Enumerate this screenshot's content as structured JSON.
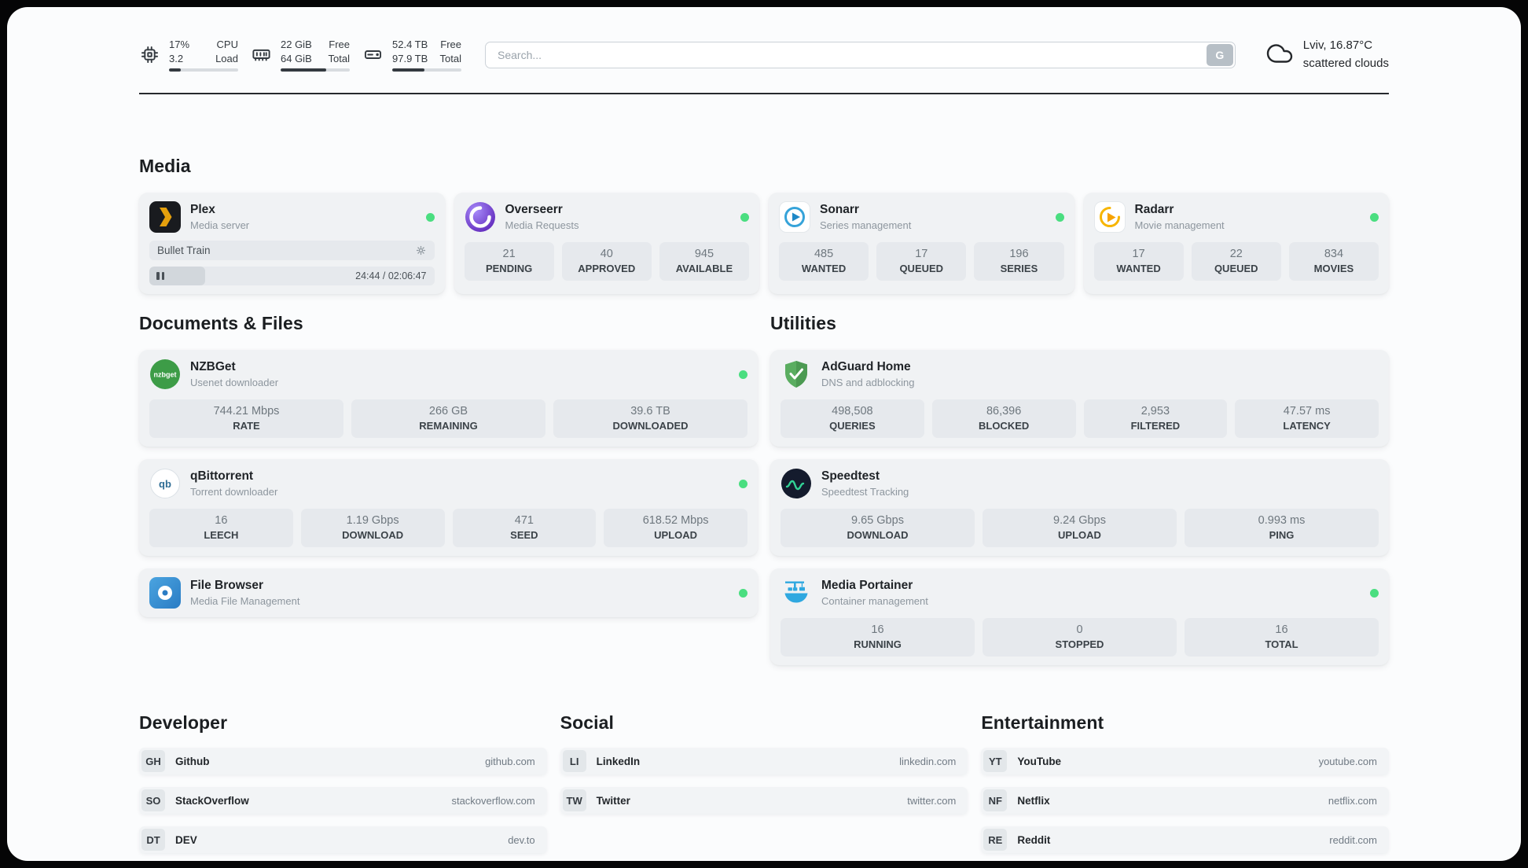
{
  "colors": {
    "status_online": "#4ade80",
    "card_background": "#f0f2f4",
    "stat_background": "#e6e9ed",
    "accent_dark": "#343a40",
    "plex_orange": "#e5a00d",
    "overseerr_purple": "#5b21b6",
    "sonarr_blue": "#36a3d9",
    "radarr_yellow": "#f7b500",
    "nzbget_green": "#3d9c47",
    "adguard_green": "#5aad60",
    "speedtest_green": "#32d296",
    "portainer_blue": "#2fa8e0",
    "filebrowser_blue": "#2a7cc4"
  },
  "header": {
    "metrics": [
      {
        "icon": "cpu-chip",
        "top_value": "17%",
        "top_label": "CPU",
        "bottom_value": "3.2",
        "bottom_label": "Load",
        "progress_pct": 17
      },
      {
        "icon": "memory",
        "top_value": "22 GiB",
        "top_label": "Free",
        "bottom_value": "64 GiB",
        "bottom_label": "Total",
        "progress_pct": 66
      },
      {
        "icon": "hard-drive",
        "top_value": "52.4 TB",
        "top_label": "Free",
        "bottom_value": "97.9 TB",
        "bottom_label": "Total",
        "progress_pct": 47
      }
    ],
    "search": {
      "placeholder": "Search...",
      "engine_button": "G"
    },
    "weather": {
      "icon": "cloud",
      "location": "Lviv, 16.87°C",
      "condition": "scattered clouds"
    }
  },
  "media": {
    "title": "Media",
    "apps": [
      {
        "name": "Plex",
        "subtitle": "Media server",
        "icon": "plex-logo",
        "status": "online",
        "now_playing": {
          "title": "Bullet Train",
          "time": "24:44 / 02:06:47",
          "progress_pct": 19.5,
          "state": "paused"
        }
      },
      {
        "name": "Overseerr",
        "subtitle": "Media Requests",
        "icon": "overseerr-logo",
        "status": "online",
        "stats": [
          {
            "value": "21",
            "label": "PENDING"
          },
          {
            "value": "40",
            "label": "APPROVED"
          },
          {
            "value": "945",
            "label": "AVAILABLE"
          }
        ]
      },
      {
        "name": "Sonarr",
        "subtitle": "Series management",
        "icon": "sonarr-logo",
        "status": "online",
        "stats": [
          {
            "value": "485",
            "label": "WANTED"
          },
          {
            "value": "17",
            "label": "QUEUED"
          },
          {
            "value": "196",
            "label": "SERIES"
          }
        ]
      },
      {
        "name": "Radarr",
        "subtitle": "Movie management",
        "icon": "radarr-logo",
        "status": "online",
        "stats": [
          {
            "value": "17",
            "label": "WANTED"
          },
          {
            "value": "22",
            "label": "QUEUED"
          },
          {
            "value": "834",
            "label": "MOVIES"
          }
        ]
      }
    ]
  },
  "documents": {
    "title": "Documents & Files",
    "apps": [
      {
        "name": "NZBGet",
        "subtitle": "Usenet downloader",
        "icon": "nzbget-logo",
        "status": "online",
        "stats": [
          {
            "value": "744.21 Mbps",
            "label": "RATE"
          },
          {
            "value": "266 GB",
            "label": "REMAINING"
          },
          {
            "value": "39.6 TB",
            "label": "DOWNLOADED"
          }
        ]
      },
      {
        "name": "qBittorrent",
        "subtitle": "Torrent downloader",
        "icon": "qbittorrent-logo",
        "status": "online",
        "stats": [
          {
            "value": "16",
            "label": "LEECH"
          },
          {
            "value": "1.19 Gbps",
            "label": "DOWNLOAD"
          },
          {
            "value": "471",
            "label": "SEED"
          },
          {
            "value": "618.52 Mbps",
            "label": "UPLOAD"
          }
        ]
      },
      {
        "name": "File Browser",
        "subtitle": "Media File Management",
        "icon": "filebrowser-logo",
        "status": "online"
      }
    ]
  },
  "utilities": {
    "title": "Utilities",
    "apps": [
      {
        "name": "AdGuard Home",
        "subtitle": "DNS and adblocking",
        "icon": "adguard-logo",
        "stats": [
          {
            "value": "498,508",
            "label": "QUERIES"
          },
          {
            "value": "86,396",
            "label": "BLOCKED"
          },
          {
            "value": "2,953",
            "label": "FILTERED"
          },
          {
            "value": "47.57 ms",
            "label": "LATENCY"
          }
        ]
      },
      {
        "name": "Speedtest",
        "subtitle": "Speedtest Tracking",
        "icon": "speedtest-logo",
        "stats": [
          {
            "value": "9.65 Gbps",
            "label": "DOWNLOAD"
          },
          {
            "value": "9.24 Gbps",
            "label": "UPLOAD"
          },
          {
            "value": "0.993 ms",
            "label": "PING"
          }
        ]
      },
      {
        "name": "Media Portainer",
        "subtitle": "Container management",
        "icon": "portainer-logo",
        "status": "online",
        "stats": [
          {
            "value": "16",
            "label": "RUNNING"
          },
          {
            "value": "0",
            "label": "STOPPED"
          },
          {
            "value": "16",
            "label": "TOTAL"
          }
        ]
      }
    ]
  },
  "bookmark_groups": [
    {
      "title": "Developer",
      "items": [
        {
          "abbr": "GH",
          "name": "Github",
          "url": "github.com"
        },
        {
          "abbr": "SO",
          "name": "StackOverflow",
          "url": "stackoverflow.com"
        },
        {
          "abbr": "DT",
          "name": "DEV",
          "url": "dev.to"
        }
      ]
    },
    {
      "title": "Social",
      "items": [
        {
          "abbr": "LI",
          "name": "LinkedIn",
          "url": "linkedin.com"
        },
        {
          "abbr": "TW",
          "name": "Twitter",
          "url": "twitter.com"
        }
      ]
    },
    {
      "title": "Entertainment",
      "items": [
        {
          "abbr": "YT",
          "name": "YouTube",
          "url": "youtube.com"
        },
        {
          "abbr": "NF",
          "name": "Netflix",
          "url": "netflix.com"
        },
        {
          "abbr": "RE",
          "name": "Reddit",
          "url": "reddit.com"
        }
      ]
    }
  ]
}
